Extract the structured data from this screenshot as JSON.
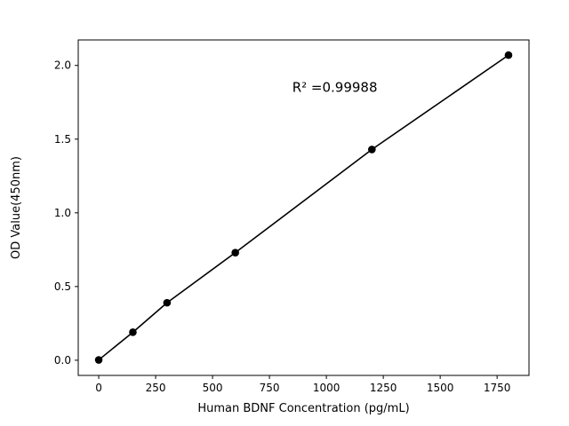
{
  "figure": {
    "background_color": "#ffffff",
    "axes_color": "#000000"
  },
  "chart_data": {
    "type": "line",
    "title": "",
    "xlabel": "Human BDNF Concentration (pg/mL)",
    "ylabel": "OD Value(450nm)",
    "x": [
      0,
      150,
      300,
      600,
      1200,
      1800
    ],
    "y": [
      0.002,
      0.19,
      0.39,
      0.73,
      1.43,
      2.07
    ],
    "x_ticks": [
      0,
      250,
      500,
      750,
      1000,
      1250,
      1500,
      1750
    ],
    "y_ticks": [
      0.0,
      0.5,
      1.0,
      1.5,
      2.0
    ],
    "xlim": [
      -90,
      1890
    ],
    "ylim": [
      -0.103,
      2.173
    ],
    "grid": false,
    "legend_position": "none",
    "annotation": "R² =0.99988",
    "annotation_xy": [
      850,
      1.82
    ],
    "line_color": "#000000",
    "marker": "circle",
    "marker_color": "#000000"
  }
}
